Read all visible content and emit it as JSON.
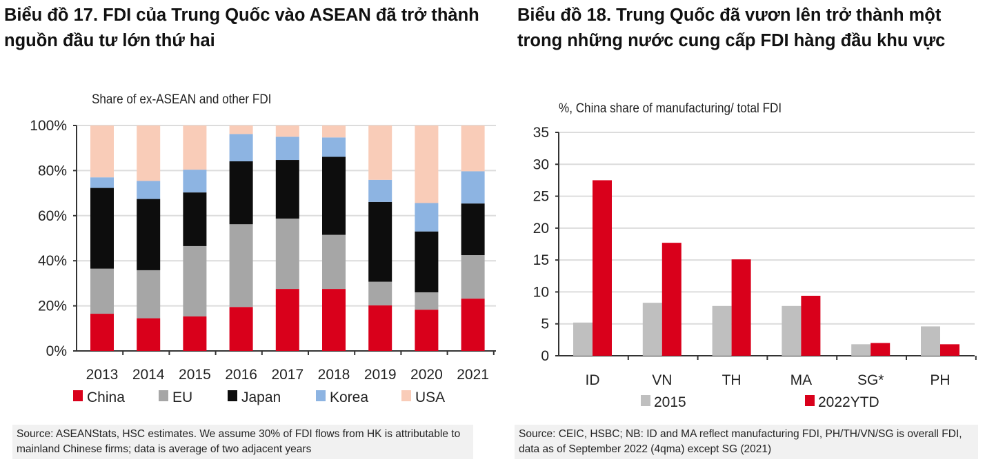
{
  "titles": {
    "left": "Biểu đồ 17. FDI của Trung Quốc vào ASEAN đã trở thành nguồn đầu tư lớn thứ hai",
    "right": "Biểu đồ 18. Trung Quốc đã vươn lên trở thành một trong những nước cung cấp FDI hàng đầu khu vực"
  },
  "sources": {
    "left": "Source: ASEANStats, HSC estimates. We assume 30% of FDI flows from HK is attributable to mainland Chinese firms; data is average of two adjacent years",
    "right": "Source: CEIC, HSBC; NB: ID and MA reflect manufacturing FDI, PH/TH/VN/SG is overall FDI, data as of September 2022 (4qma) except SG (2021)"
  },
  "chart_data": [
    {
      "type": "bar",
      "stacked": true,
      "title": "Share of ex-ASEAN and other FDI",
      "xlabel": "",
      "ylabel": "",
      "ylim": [
        0,
        100
      ],
      "yticks": [
        "0%",
        "20%",
        "40%",
        "60%",
        "80%",
        "100%"
      ],
      "grid": true,
      "legend": "bottom",
      "categories": [
        "2013",
        "2014",
        "2015",
        "2016",
        "2017",
        "2018",
        "2019",
        "2020",
        "2021"
      ],
      "series": [
        {
          "name": "China",
          "color": "#d9001b",
          "values": [
            16.5,
            14.5,
            15.3,
            19.5,
            27.5,
            27.5,
            20.2,
            18.3,
            23.2
          ]
        },
        {
          "name": "EU",
          "color": "#a6a6a6",
          "values": [
            20.0,
            21.3,
            31.2,
            36.7,
            31.2,
            24.0,
            10.5,
            7.7,
            19.3
          ]
        },
        {
          "name": "Japan",
          "color": "#0d0d0d",
          "values": [
            35.8,
            31.6,
            23.8,
            27.9,
            26.0,
            34.6,
            35.4,
            27.0,
            22.9
          ]
        },
        {
          "name": "Korea",
          "color": "#8db4e2",
          "values": [
            4.7,
            8.0,
            10.1,
            12.1,
            10.3,
            8.6,
            9.8,
            12.6,
            14.3
          ]
        },
        {
          "name": "USA",
          "color": "#f9ccb8",
          "values": [
            23.0,
            24.6,
            19.6,
            3.8,
            5.0,
            5.3,
            24.1,
            34.4,
            20.3
          ]
        }
      ]
    },
    {
      "type": "bar",
      "title": "%, China share of manufacturing/ total FDI",
      "xlabel": "",
      "ylabel": "",
      "ylim": [
        0,
        35
      ],
      "yticks": [
        "0",
        "5",
        "10",
        "15",
        "20",
        "25",
        "30",
        "35"
      ],
      "grid": true,
      "legend": "bottom",
      "categories": [
        "ID",
        "VN",
        "TH",
        "MA",
        "SG*",
        "PH"
      ],
      "series": [
        {
          "name": "2015",
          "color": "#bfbfbf",
          "values": [
            5.2,
            8.3,
            7.8,
            7.8,
            1.8,
            4.6
          ]
        },
        {
          "name": "2022YTD",
          "color": "#d9001b",
          "values": [
            27.5,
            17.7,
            15.1,
            9.4,
            2.0,
            1.8
          ]
        }
      ]
    }
  ]
}
